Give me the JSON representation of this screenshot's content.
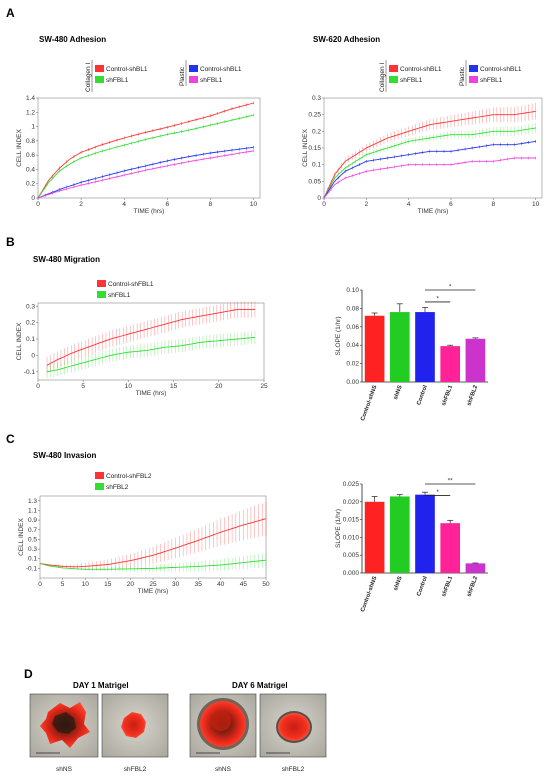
{
  "panels": {
    "A": "A",
    "B": "B",
    "C": "C",
    "D": "D"
  },
  "colors": {
    "red": "#ff3333",
    "green": "#33dd33",
    "blue": "#2233ee",
    "magenta": "#ee44dd",
    "pink": "#ff3399",
    "purple": "#cc33cc"
  },
  "chart_data": [
    {
      "id": "a_left",
      "type": "line",
      "title": "SW-480 Adhesion",
      "xlabel": "TIME (hrs)",
      "ylabel": "CELL INDEX",
      "xlim": [
        0,
        10.3
      ],
      "ylim": [
        0,
        1.4
      ],
      "xticks": [
        "0",
        "2",
        "4",
        "6",
        "8",
        "10"
      ],
      "yticks": [
        "0",
        "0.2",
        "0.4",
        "0.6",
        "0.8",
        "1",
        "1.2",
        "1.4"
      ],
      "legend_groups": [
        "Collagen I",
        "Plastic"
      ],
      "series": [
        {
          "name": "Control-shBL1",
          "color": "#ff3333",
          "x": [
            0,
            0.5,
            1,
            1.5,
            2,
            3,
            4,
            5,
            6,
            7,
            8,
            9,
            10
          ],
          "y": [
            0,
            0.25,
            0.42,
            0.55,
            0.64,
            0.75,
            0.84,
            0.92,
            0.99,
            1.07,
            1.15,
            1.25,
            1.33
          ]
        },
        {
          "name": "shFBL1",
          "color": "#33dd33",
          "x": [
            0,
            0.5,
            1,
            1.5,
            2,
            3,
            4,
            5,
            6,
            7,
            8,
            9,
            10
          ],
          "y": [
            0,
            0.22,
            0.38,
            0.48,
            0.56,
            0.66,
            0.74,
            0.82,
            0.89,
            0.95,
            1.02,
            1.09,
            1.16
          ]
        },
        {
          "name": "Control-shBL1",
          "color": "#2233ee",
          "x": [
            0,
            0.5,
            1,
            1.5,
            2,
            3,
            4,
            5,
            6,
            7,
            8,
            9,
            10
          ],
          "y": [
            0,
            0.06,
            0.12,
            0.17,
            0.22,
            0.3,
            0.38,
            0.45,
            0.52,
            0.58,
            0.63,
            0.67,
            0.71
          ]
        },
        {
          "name": "shFBL1",
          "color": "#ee44dd",
          "x": [
            0,
            0.5,
            1,
            1.5,
            2,
            3,
            4,
            5,
            6,
            7,
            8,
            9,
            10
          ],
          "y": [
            0,
            0.05,
            0.1,
            0.14,
            0.18,
            0.25,
            0.32,
            0.39,
            0.45,
            0.51,
            0.56,
            0.61,
            0.66
          ]
        }
      ]
    },
    {
      "id": "a_right",
      "type": "line",
      "title": "SW-620 Adhesion",
      "xlabel": "TIME (hrs)",
      "ylabel": "CELL INDEX",
      "xlim": [
        0,
        10.3
      ],
      "ylim": [
        0,
        0.3
      ],
      "xticks": [
        "0",
        "2",
        "4",
        "6",
        "8",
        "10"
      ],
      "yticks": [
        "0",
        "0.05",
        "0.1",
        "0.15",
        "0.2",
        "0.25",
        "0.3"
      ],
      "legend_groups": [
        "Collagen I",
        "Plastic"
      ],
      "series": [
        {
          "name": "Control-shBL1",
          "color": "#ff3333",
          "x": [
            0,
            0.5,
            1,
            2,
            3,
            4,
            5,
            6,
            7,
            8,
            9,
            10
          ],
          "y": [
            0,
            0.07,
            0.11,
            0.15,
            0.18,
            0.2,
            0.22,
            0.23,
            0.24,
            0.25,
            0.25,
            0.26
          ],
          "err": 0.025
        },
        {
          "name": "shFBL1",
          "color": "#33dd33",
          "x": [
            0,
            0.5,
            1,
            2,
            3,
            4,
            5,
            6,
            7,
            8,
            9,
            10
          ],
          "y": [
            0,
            0.06,
            0.09,
            0.13,
            0.15,
            0.17,
            0.18,
            0.19,
            0.19,
            0.2,
            0.2,
            0.21
          ],
          "err": 0.015
        },
        {
          "name": "Control-shBL1",
          "color": "#2233ee",
          "x": [
            0,
            0.5,
            1,
            2,
            3,
            4,
            5,
            6,
            7,
            8,
            9,
            10
          ],
          "y": [
            0,
            0.05,
            0.08,
            0.11,
            0.12,
            0.13,
            0.14,
            0.14,
            0.15,
            0.16,
            0.16,
            0.17
          ]
        },
        {
          "name": "shFBL1",
          "color": "#ee44dd",
          "x": [
            0,
            0.5,
            1,
            2,
            3,
            4,
            5,
            6,
            7,
            8,
            9,
            10
          ],
          "y": [
            0,
            0.04,
            0.06,
            0.08,
            0.09,
            0.1,
            0.1,
            0.1,
            0.11,
            0.11,
            0.12,
            0.12
          ]
        }
      ]
    },
    {
      "id": "b_line",
      "type": "line",
      "title": "SW-480 Migration",
      "xlabel": "TIME (hrs)",
      "ylabel": "CELL INDEX",
      "xlim": [
        0,
        25
      ],
      "ylim": [
        -0.15,
        0.32
      ],
      "xticks": [
        "0",
        "5",
        "10",
        "15",
        "20",
        "25"
      ],
      "yticks": [
        "-0.1",
        "0",
        "0.1",
        "0.2",
        "0.3"
      ],
      "series": [
        {
          "name": "Control-shFBL1",
          "color": "#ff3333",
          "x": [
            1,
            2,
            4,
            6,
            8,
            10,
            12,
            14,
            16,
            18,
            20,
            22,
            24
          ],
          "y": [
            -0.06,
            -0.03,
            0.02,
            0.06,
            0.1,
            0.13,
            0.16,
            0.19,
            0.22,
            0.24,
            0.26,
            0.28,
            0.28
          ],
          "err": 0.05
        },
        {
          "name": "shFBL1",
          "color": "#33dd33",
          "x": [
            1,
            2,
            4,
            6,
            8,
            10,
            12,
            14,
            16,
            18,
            20,
            22,
            24
          ],
          "y": [
            -0.1,
            -0.09,
            -0.06,
            -0.03,
            0,
            0.02,
            0.03,
            0.05,
            0.06,
            0.08,
            0.09,
            0.1,
            0.11
          ],
          "err": 0.04
        }
      ]
    },
    {
      "id": "b_bar",
      "type": "bar",
      "ylabel": "SLOPE (1/hr)",
      "ylim": [
        0,
        0.1
      ],
      "yticks": [
        "0.00",
        "0.02",
        "0.04",
        "0.06",
        "0.08",
        "0.10"
      ],
      "categories": [
        "Control-shNS",
        "shNS",
        "Control",
        "shFBL1",
        "shFBL2"
      ],
      "values": [
        0.072,
        0.076,
        0.076,
        0.039,
        0.047
      ],
      "errors": [
        0.003,
        0.009,
        0.005,
        0.001,
        0.001
      ],
      "bar_colors": [
        "#ff2222",
        "#22cc22",
        "#2222ee",
        "#ff2299",
        "#cc33cc"
      ],
      "significance": [
        "*",
        "*"
      ]
    },
    {
      "id": "c_line",
      "type": "line",
      "title": "SW-480 Invasion",
      "xlabel": "TIME (hrs)",
      "ylabel": "CELL INDEX",
      "xlim": [
        0,
        50
      ],
      "ylim": [
        -0.3,
        1.4
      ],
      "xticks": [
        "0",
        "5",
        "10",
        "15",
        "20",
        "25",
        "30",
        "35",
        "40",
        "45",
        "50"
      ],
      "yticks": [
        "-0.1",
        "0.1",
        "0.3",
        "0.5",
        "0.7",
        "0.9",
        "1.1",
        "1.3"
      ],
      "series": [
        {
          "name": "Control-shFBL2",
          "color": "#ff3333",
          "x": [
            0,
            2,
            5,
            8,
            10,
            15,
            20,
            25,
            30,
            35,
            40,
            45,
            50
          ],
          "y": [
            0,
            -0.03,
            -0.06,
            -0.07,
            -0.06,
            -0.02,
            0.06,
            0.17,
            0.32,
            0.48,
            0.65,
            0.8,
            0.93
          ],
          "err_end": 0.35
        },
        {
          "name": "shFBL2",
          "color": "#33dd33",
          "x": [
            0,
            2,
            5,
            8,
            10,
            15,
            20,
            25,
            30,
            35,
            40,
            45,
            50
          ],
          "y": [
            0,
            -0.05,
            -0.09,
            -0.11,
            -0.12,
            -0.12,
            -0.11,
            -0.1,
            -0.08,
            -0.06,
            -0.03,
            0.02,
            0.07
          ],
          "err_end": 0.15
        }
      ]
    },
    {
      "id": "c_bar",
      "type": "bar",
      "ylabel": "SLOPE (1/hr)",
      "ylim": [
        0,
        0.025
      ],
      "yticks": [
        "0.000",
        "0.005",
        "0.010",
        "0.015",
        "0.020",
        "0.025"
      ],
      "categories": [
        "Control-shNS",
        "shNS",
        "Control",
        "shFBL1",
        "shFBL2"
      ],
      "values": [
        0.02,
        0.0215,
        0.022,
        0.014,
        0.0027
      ],
      "errors": [
        0.0015,
        0.0005,
        0.0007,
        0.0008,
        0.0001
      ],
      "bar_colors": [
        "#ff2222",
        "#22cc22",
        "#2222ee",
        "#ff2299",
        "#cc33cc"
      ],
      "significance": [
        "*",
        "**"
      ]
    }
  ],
  "panel_d": {
    "groups": [
      {
        "title": "DAY  1 Matrigel",
        "labels": [
          "shNS",
          "shFBL2"
        ]
      },
      {
        "title": "DAY  6 Matrigel",
        "labels": [
          "shNS",
          "shFBL2"
        ]
      }
    ]
  }
}
